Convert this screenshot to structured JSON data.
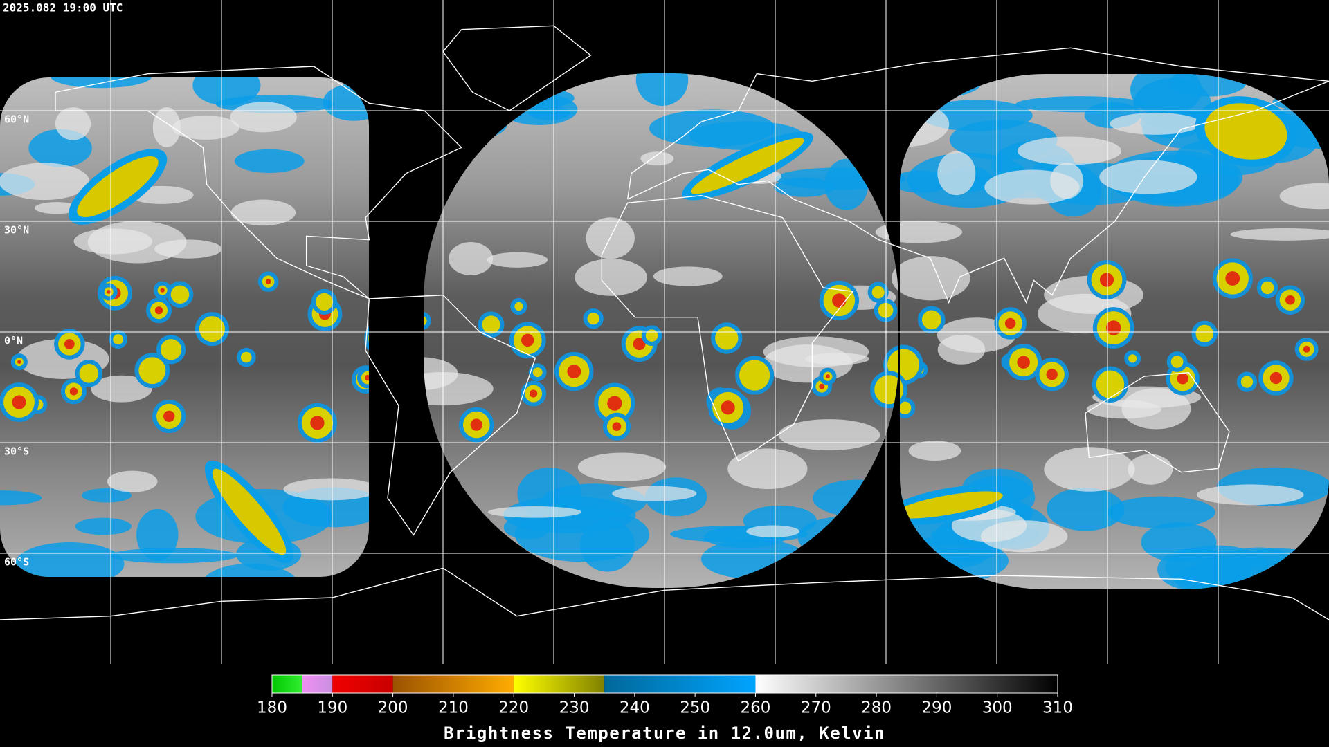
{
  "timestamp": "2025.082 19:00 UTC",
  "latitudes": [
    {
      "value": 60,
      "label": "60°N"
    },
    {
      "value": 30,
      "label": "30°N"
    },
    {
      "value": 0,
      "label": "0°N"
    },
    {
      "value": -30,
      "label": "30°S"
    },
    {
      "value": -60,
      "label": "60°S"
    }
  ],
  "colorbar": {
    "title": "Brightness Temperature in 12.0um, Kelvin",
    "range": [
      180,
      310
    ],
    "ticks": [
      180,
      190,
      200,
      210,
      220,
      230,
      240,
      250,
      260,
      270,
      280,
      290,
      300,
      310
    ],
    "segments": [
      {
        "from": 180,
        "to": 185,
        "colors": [
          "#00c800",
          "#30ee30"
        ]
      },
      {
        "from": 185,
        "to": 190,
        "colors": [
          "#f090f0",
          "#c890e0"
        ]
      },
      {
        "from": 190,
        "to": 200,
        "colors": [
          "#f00000",
          "#c80000"
        ]
      },
      {
        "from": 200,
        "to": 220,
        "colors": [
          "#9a5200",
          "#ffac00"
        ]
      },
      {
        "from": 220,
        "to": 235,
        "colors": [
          "#ffff00",
          "#808000"
        ]
      },
      {
        "from": 235,
        "to": 260,
        "colors": [
          "#00689a",
          "#00a4ff"
        ]
      },
      {
        "from": 260,
        "to": 310,
        "colors": [
          "#ffffff",
          "#000000"
        ]
      }
    ]
  }
}
